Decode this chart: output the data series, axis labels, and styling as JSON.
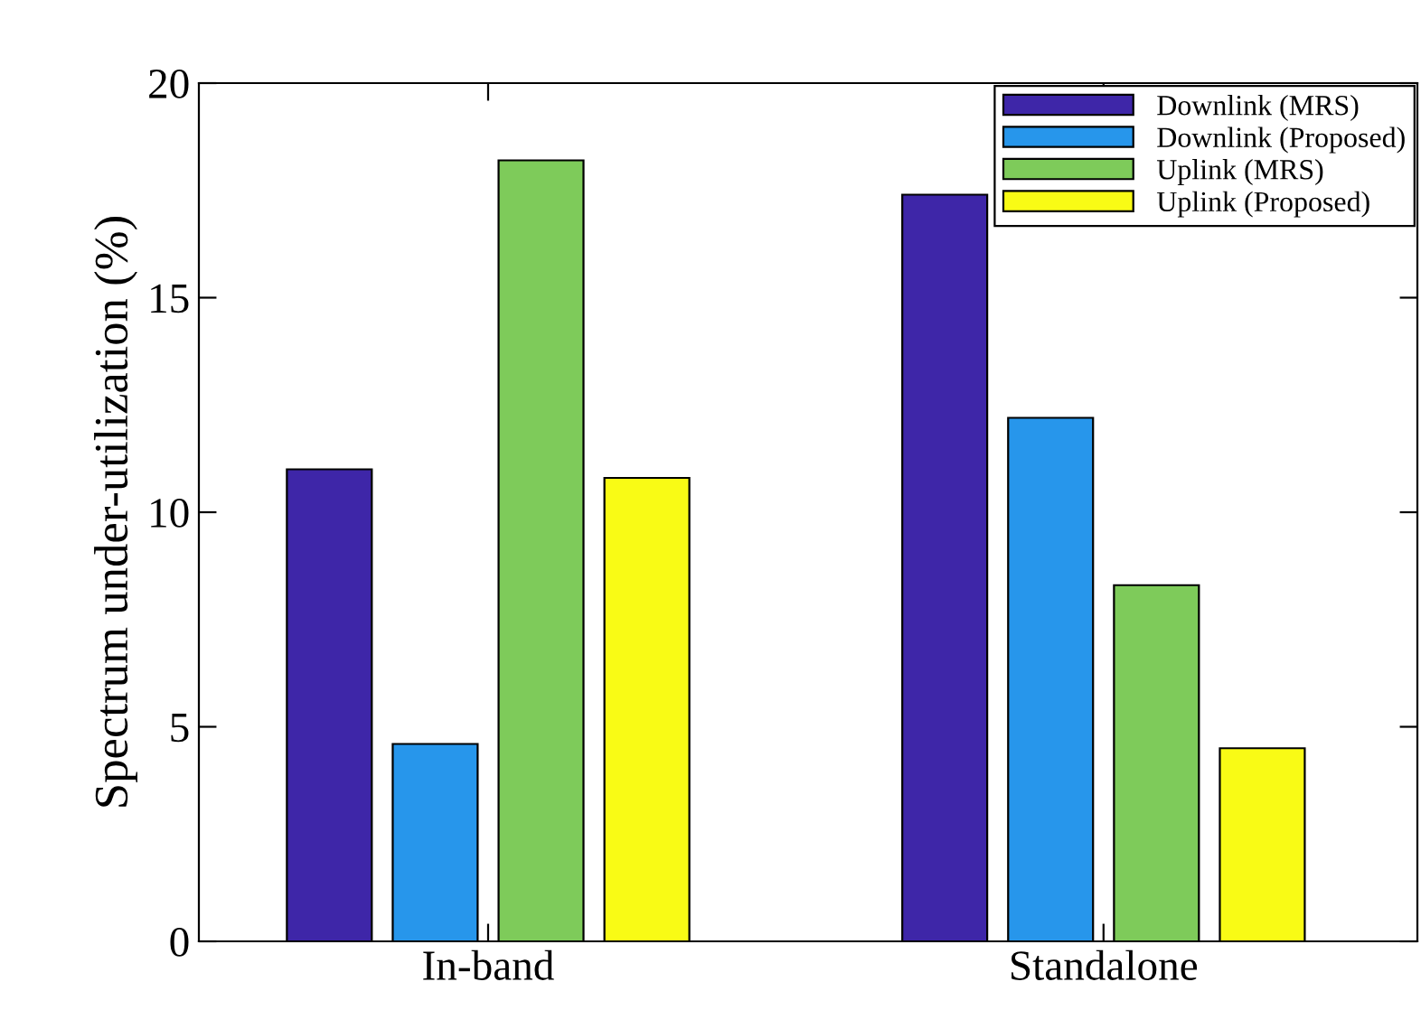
{
  "chart_data": {
    "type": "bar",
    "ylabel": "Spectrum under-utilization (%)",
    "categories": [
      "In-band",
      "Standalone"
    ],
    "series": [
      {
        "name": "Downlink (MRS)",
        "color": "#3e26a8",
        "values": [
          11.0,
          17.4
        ]
      },
      {
        "name": "Downlink (Proposed)",
        "color": "#2796eb",
        "values": [
          4.6,
          12.2
        ]
      },
      {
        "name": "Uplink (MRS)",
        "color": "#7ecb5a",
        "values": [
          18.2,
          8.3
        ]
      },
      {
        "name": "Uplink (Proposed)",
        "color": "#f9fb15",
        "values": [
          10.8,
          4.5
        ]
      }
    ],
    "ylim": [
      0,
      20
    ],
    "yticks": [
      0,
      5,
      10,
      15,
      20
    ],
    "grid": false,
    "legend": "top right"
  }
}
